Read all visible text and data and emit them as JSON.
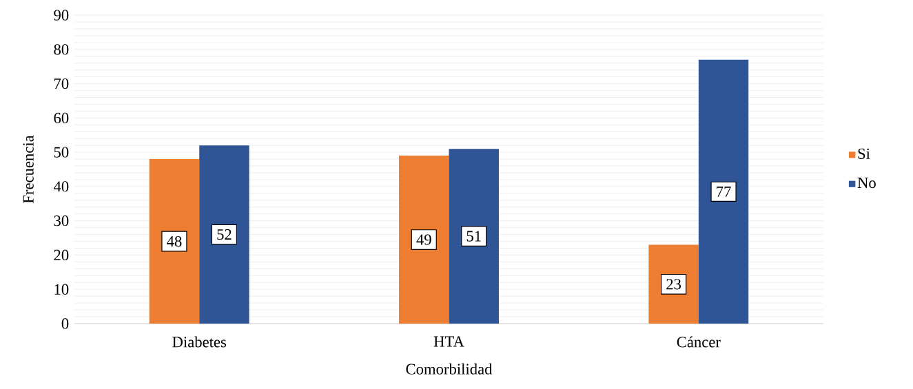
{
  "chart_data": {
    "type": "bar",
    "xlabel": "Comorbilidad",
    "ylabel": "Frecuencia",
    "categories": [
      "Diabetes",
      "HTA",
      "Cáncer"
    ],
    "series": [
      {
        "name": "Si",
        "color": "#ed7d31",
        "values": [
          48,
          49,
          23
        ]
      },
      {
        "name": "No",
        "color": "#2f5597",
        "values": [
          52,
          51,
          77
        ]
      }
    ],
    "ylim": [
      0,
      90
    ],
    "yticks": [
      0,
      10,
      20,
      30,
      40,
      50,
      60,
      70,
      80,
      90
    ],
    "grid": "y",
    "legend": "right",
    "data_labels": true
  }
}
